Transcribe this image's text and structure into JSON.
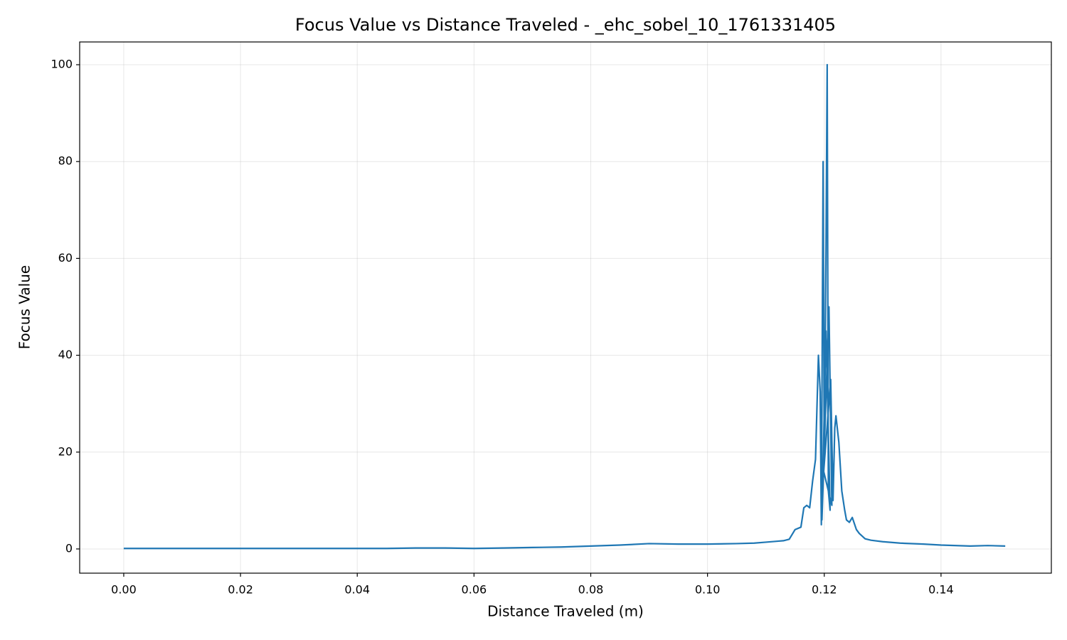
{
  "chart_data": {
    "type": "line",
    "title": "Focus Value vs Distance Traveled - _ehc_sobel_10_1761331405",
    "x_label": "Distance Traveled (m)",
    "y_label": "Focus Value",
    "x": [
      0,
      0.005,
      0.01,
      0.015,
      0.02,
      0.025,
      0.03,
      0.035,
      0.04,
      0.045,
      0.05,
      0.055,
      0.06,
      0.065,
      0.07,
      0.075,
      0.08,
      0.085,
      0.09,
      0.095,
      0.1,
      0.105,
      0.108,
      0.11,
      0.112,
      0.113,
      0.114,
      0.115,
      0.116,
      0.1165,
      0.117,
      0.1175,
      0.118,
      0.1185,
      0.119,
      0.1193,
      0.1195,
      0.1198,
      0.12,
      0.1203,
      0.1205,
      0.1207,
      0.121,
      0.1203,
      0.1196,
      0.1208,
      0.1213,
      0.1199,
      0.1211,
      0.1215,
      0.1218,
      0.122,
      0.1225,
      0.123,
      0.1235,
      0.1238,
      0.1243,
      0.1248,
      0.1255,
      0.126,
      0.127,
      0.128,
      0.13,
      0.133,
      0.137,
      0.14,
      0.145,
      0.148,
      0.151
    ],
    "values": [
      0.1,
      0.1,
      0.1,
      0.1,
      0.1,
      0.1,
      0.1,
      0.1,
      0.1,
      0.1,
      0.2,
      0.2,
      0.1,
      0.2,
      0.3,
      0.4,
      0.6,
      0.8,
      1.1,
      1,
      1,
      1.1,
      1.2,
      1.4,
      1.6,
      1.7,
      2,
      4,
      4.5,
      8.5,
      9,
      8.5,
      14,
      18.5,
      40,
      32.5,
      5,
      80,
      18,
      62,
      100,
      12,
      8,
      45,
      6,
      50,
      9,
      16,
      35,
      10,
      25,
      27.5,
      22,
      12,
      8,
      6,
      5.5,
      6.5,
      4,
      3.2,
      2.1,
      1.8,
      1.5,
      1.2,
      1,
      0.8,
      0.6,
      0.7,
      0.6
    ],
    "color": "#1f77b4",
    "xlim": [
      -0.00755,
      0.1589
    ],
    "ylim": [
      -5,
      104.7
    ],
    "xticks": [
      {
        "value": 0,
        "label": "0.00"
      },
      {
        "value": 0.02,
        "label": "0.02"
      },
      {
        "value": 0.04,
        "label": "0.04"
      },
      {
        "value": 0.06,
        "label": "0.06"
      },
      {
        "value": 0.08,
        "label": "0.08"
      },
      {
        "value": 0.1,
        "label": "0.10"
      },
      {
        "value": 0.12,
        "label": "0.12"
      },
      {
        "value": 0.14,
        "label": "0.14"
      }
    ],
    "yticks": [
      0,
      20,
      40,
      60,
      80,
      100
    ],
    "grid": true
  }
}
